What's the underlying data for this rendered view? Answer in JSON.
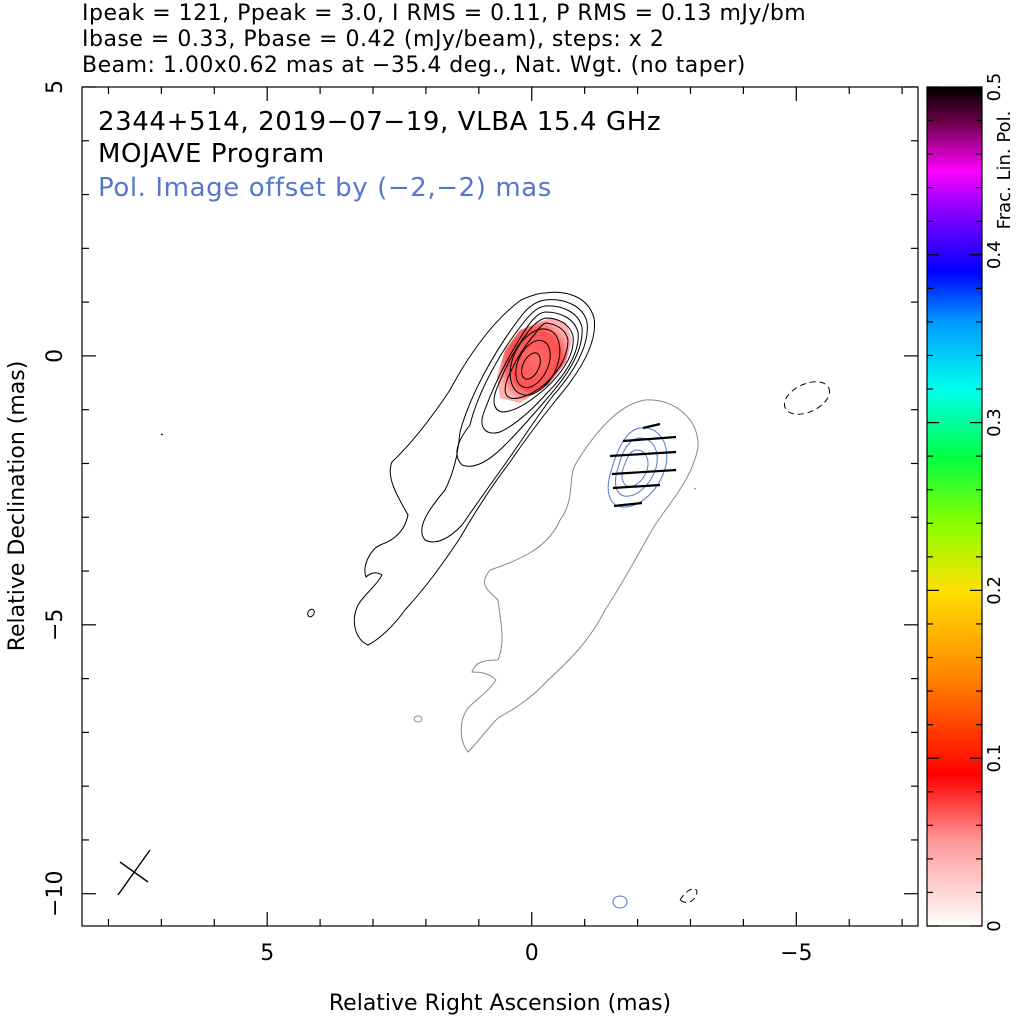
{
  "header": {
    "line1": "Ipeak = 121, Ppeak = 3.0, I RMS = 0.11, P RMS = 0.13 mJy/bm",
    "line2": "Ibase = 0.33, Pbase = 0.42 (mJy/beam), steps: x 2",
    "line3": "Beam: 1.00x0.62 mas at −35.4 deg., Nat. Wgt. (no taper)"
  },
  "chart_data": {
    "type": "contour-map",
    "xlabel": "Relative Right Ascension (mas)",
    "ylabel": "Relative Declination (mas)",
    "xlim": [
      8.5,
      -7.3
    ],
    "ylim": [
      -10.6,
      5.0
    ],
    "x_ticks": [
      {
        "v": 5,
        "label": "5"
      },
      {
        "v": 0,
        "label": "0"
      },
      {
        "v": -5,
        "label": "−5"
      }
    ],
    "y_ticks": [
      {
        "v": 5,
        "label": "5"
      },
      {
        "v": 0,
        "label": "0"
      },
      {
        "v": -5,
        "label": "−5"
      },
      {
        "v": -10,
        "label": "−10"
      }
    ],
    "annotations": {
      "source": "2344+514, 2019−07−19, VLBA 15.4 GHz",
      "program": "MOJAVE Program",
      "pol_offset": "Pol. Image offset by (−2,−2) mas"
    },
    "colorbar": {
      "label": "Frac. Lin. Pol.",
      "range": [
        0,
        0.5
      ],
      "ticks": [
        {
          "v": 0,
          "label": "0"
        },
        {
          "v": 0.1,
          "label": "0.1"
        },
        {
          "v": 0.2,
          "label": "0.2"
        },
        {
          "v": 0.3,
          "label": "0.3"
        },
        {
          "v": 0.4,
          "label": "0.4"
        },
        {
          "v": 0.5,
          "label": "0.5"
        }
      ]
    },
    "beam": {
      "major_mas": 1.0,
      "minor_mas": 0.62,
      "pa_deg": -35.4
    },
    "colors": {
      "stokes_i": "#000000",
      "pol_outer": "#888888",
      "pol_inner": "#5577cc",
      "pol_blob": "#ff6060",
      "offset_text": "#5577cc"
    }
  }
}
